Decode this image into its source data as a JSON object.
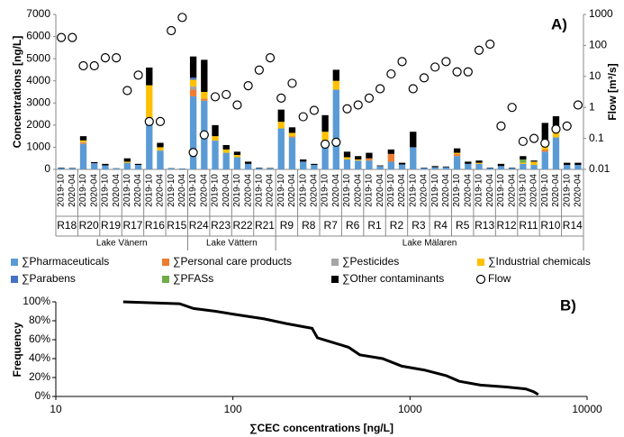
{
  "chart_data": [
    {
      "type": "bar",
      "stacked": true,
      "panel_label": "A)",
      "ylabel": "Concentrations [ng/L]",
      "y2label": "Flow [m³/s]",
      "categories": [
        "2019-10",
        "2020-04",
        "2019-10",
        "2020-04",
        "2019-10",
        "2020-04",
        "2019-10",
        "2020-04",
        "2019-10",
        "2020-04",
        "2019-10",
        "2020-04",
        "2019-10",
        "2020-04",
        "2019-10",
        "2020-04",
        "2019-10",
        "2020-04",
        "2019-10",
        "2020-04",
        "2019-10",
        "2020-04",
        "2019-10",
        "2020-04",
        "2019-10",
        "2020-04",
        "2019-10",
        "2020-04",
        "2019-10",
        "2020-04",
        "2019-10",
        "2020-04",
        "2019-10",
        "2020-04",
        "2019-10",
        "2020-04",
        "2019-10",
        "2020-04",
        "2019-10",
        "2020-04",
        "2019-10",
        "2020-04",
        "2019-10",
        "2020-04",
        "2019-10",
        "2020-04",
        "2019-10",
        "2020-04"
      ],
      "lakes": [
        {
          "name": "Lake Vänern",
          "sites": [
            "R18",
            "R20",
            "R19",
            "R17",
            "R16",
            "R15"
          ]
        },
        {
          "name": "Lake Vättern",
          "sites": [
            "R24",
            "R23",
            "R22",
            "R21"
          ]
        },
        {
          "name": "Lake Mälaren",
          "sites": [
            "R9",
            "R8",
            "R7",
            "R6",
            "R1",
            "R2",
            "R3",
            "R4",
            "R5",
            "R13",
            "R12",
            "R11",
            "R10",
            "R14"
          ]
        }
      ],
      "ylim": [
        0,
        7000
      ],
      "yticks": [
        0,
        1000,
        2000,
        3000,
        4000,
        5000,
        6000,
        7000
      ],
      "y2lim": [
        0.01,
        1000
      ],
      "y2ticks": [
        0.01,
        0.1,
        1,
        10,
        100,
        1000
      ],
      "y2log": true,
      "legend": "bottom",
      "series": [
        {
          "name": "∑Pharmaceuticals",
          "color": "#5b9bd5",
          "values": [
            60,
            40,
            1150,
            280,
            180,
            40,
            300,
            200,
            2100,
            850,
            50,
            30,
            3300,
            3100,
            1300,
            750,
            550,
            250,
            60,
            40,
            1850,
            1450,
            350,
            200,
            1000,
            3600,
            450,
            400,
            400,
            150,
            350,
            220,
            1000,
            60,
            100,
            100,
            600,
            250,
            250,
            60,
            150,
            60,
            250,
            200,
            800,
            1450,
            200,
            200
          ]
        },
        {
          "name": "∑Personal care products",
          "color": "#ed7d31",
          "values": [
            0,
            0,
            50,
            0,
            0,
            0,
            0,
            0,
            0,
            0,
            0,
            0,
            300,
            100,
            0,
            0,
            0,
            0,
            0,
            0,
            0,
            50,
            0,
            0,
            0,
            0,
            0,
            0,
            100,
            0,
            350,
            0,
            0,
            0,
            0,
            0,
            100,
            0,
            0,
            0,
            0,
            0,
            0,
            0,
            100,
            0,
            0,
            0
          ]
        },
        {
          "name": "∑Pesticides",
          "color": "#a5a5a5",
          "values": [
            0,
            0,
            30,
            0,
            0,
            0,
            0,
            0,
            0,
            0,
            0,
            0,
            150,
            0,
            0,
            0,
            0,
            0,
            0,
            0,
            0,
            0,
            0,
            0,
            0,
            0,
            0,
            0,
            0,
            0,
            0,
            0,
            0,
            0,
            0,
            0,
            0,
            0,
            0,
            0,
            0,
            0,
            0,
            0,
            0,
            0,
            0,
            0
          ]
        },
        {
          "name": "∑Industrial chemicals",
          "color": "#ffc000",
          "values": [
            0,
            0,
            80,
            0,
            0,
            0,
            50,
            0,
            1700,
            150,
            0,
            0,
            300,
            300,
            200,
            150,
            100,
            0,
            0,
            0,
            300,
            150,
            0,
            0,
            700,
            400,
            100,
            50,
            0,
            0,
            0,
            0,
            0,
            0,
            0,
            0,
            50,
            0,
            50,
            0,
            0,
            0,
            50,
            150,
            300,
            300,
            0,
            0
          ]
        },
        {
          "name": "∑Parabens",
          "color": "#4472c4",
          "values": [
            0,
            0,
            0,
            0,
            0,
            0,
            0,
            0,
            0,
            0,
            0,
            0,
            100,
            0,
            0,
            0,
            0,
            0,
            0,
            0,
            0,
            0,
            0,
            0,
            0,
            0,
            0,
            0,
            0,
            0,
            0,
            0,
            0,
            0,
            0,
            0,
            0,
            0,
            0,
            0,
            0,
            0,
            0,
            0,
            0,
            0,
            0,
            0
          ]
        },
        {
          "name": "∑PFASs",
          "color": "#70ad47",
          "values": [
            0,
            0,
            0,
            0,
            0,
            0,
            0,
            0,
            0,
            0,
            0,
            0,
            0,
            0,
            0,
            0,
            0,
            0,
            0,
            0,
            0,
            0,
            0,
            0,
            0,
            0,
            0,
            0,
            0,
            0,
            0,
            0,
            0,
            0,
            0,
            0,
            0,
            0,
            0,
            0,
            0,
            0,
            150,
            0,
            0,
            0,
            0,
            0
          ]
        },
        {
          "name": "∑Other contaminants",
          "color": "#000000",
          "values": [
            20,
            20,
            190,
            50,
            70,
            10,
            150,
            50,
            800,
            200,
            10,
            10,
            950,
            1450,
            500,
            200,
            150,
            100,
            20,
            20,
            550,
            250,
            100,
            50,
            750,
            500,
            250,
            150,
            250,
            30,
            200,
            80,
            700,
            20,
            50,
            30,
            200,
            100,
            100,
            20,
            100,
            20,
            150,
            50,
            900,
            650,
            100,
            100
          ]
        },
        {
          "name": "Flow",
          "axis": "y2",
          "color": "#000000",
          "values": [
            180,
            180,
            22,
            22,
            40,
            40,
            3.5,
            11,
            0.35,
            0.35,
            300,
            800,
            0.035,
            0.13,
            2.2,
            2.6,
            1.2,
            5,
            16,
            40,
            2,
            6,
            0.5,
            0.8,
            0.065,
            0.075,
            0.9,
            1.2,
            2,
            4,
            12,
            30,
            4,
            9,
            20,
            30,
            14,
            14,
            70,
            110,
            0.25,
            1,
            0.08,
            0.1,
            0.07,
            0.2,
            0.25,
            1.2
          ]
        }
      ]
    },
    {
      "type": "line",
      "panel_label": "B)",
      "xlabel": "∑CEC concentrations [ng/L]",
      "ylabel": "Frequency",
      "xlog": true,
      "xlim": [
        10,
        10000
      ],
      "xticks": [
        10,
        100,
        1000,
        10000
      ],
      "ylim": [
        0,
        100
      ],
      "yticks": [
        {
          "value": 0,
          "label": "0%"
        },
        {
          "value": 20,
          "label": "20%"
        },
        {
          "value": 40,
          "label": "40%"
        },
        {
          "value": 60,
          "label": "60%"
        },
        {
          "value": 80,
          "label": "80%"
        },
        {
          "value": 100,
          "label": "100%"
        }
      ],
      "color": "#000000",
      "x": [
        24,
        50,
        60,
        80,
        100,
        150,
        200,
        280,
        300,
        450,
        520,
        700,
        900,
        1200,
        1600,
        1900,
        2500,
        3500,
        4500,
        5000,
        5300
      ],
      "values": [
        100,
        98,
        93,
        90,
        87,
        82,
        77,
        72,
        62,
        52,
        44,
        40,
        32,
        28,
        22,
        16,
        12,
        10,
        8,
        5,
        2
      ]
    }
  ]
}
